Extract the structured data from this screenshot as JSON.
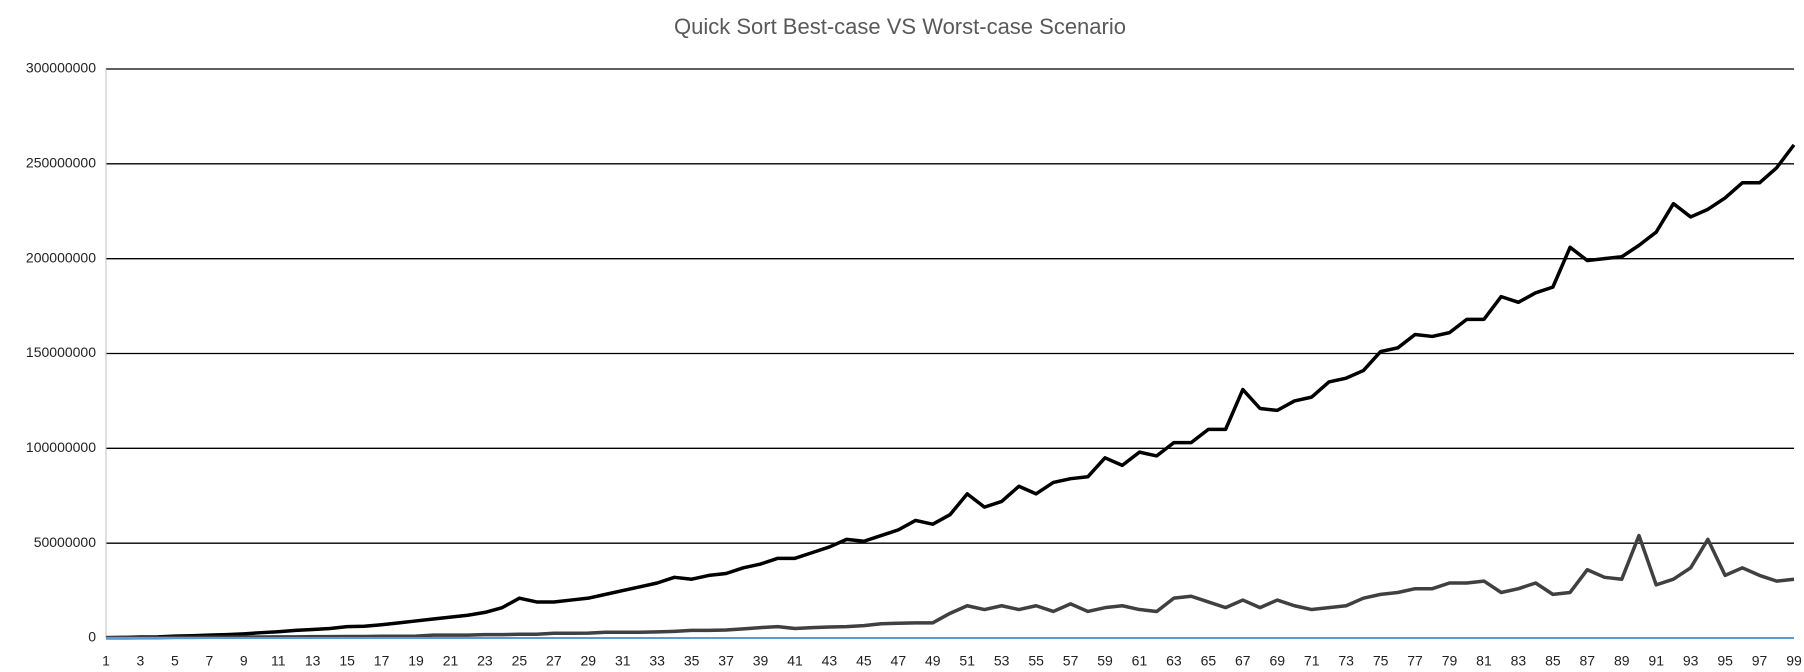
{
  "chart_data": {
    "type": "line",
    "title": "Quick Sort Best-case VS Worst-case Scenario",
    "categories": [
      1,
      null,
      3,
      null,
      5,
      null,
      7,
      null,
      9,
      null,
      11,
      null,
      13,
      null,
      15,
      null,
      17,
      null,
      19,
      null,
      21,
      null,
      23,
      null,
      25,
      null,
      27,
      null,
      29,
      null,
      31,
      null,
      33,
      null,
      35,
      null,
      37,
      null,
      39,
      null,
      41,
      null,
      43,
      null,
      45,
      null,
      47,
      null,
      49,
      null,
      51,
      null,
      53,
      null,
      55,
      null,
      57,
      null,
      59,
      null,
      61,
      null,
      63,
      null,
      65,
      null,
      67,
      null,
      69,
      null,
      71,
      null,
      73,
      null,
      75,
      null,
      77,
      null,
      79,
      null,
      81,
      null,
      83,
      null,
      85,
      null,
      87,
      null,
      89,
      null,
      91,
      null,
      93,
      null,
      95,
      null,
      97,
      null,
      99
    ],
    "series": [
      {
        "color": "#000000",
        "values": [
          200000,
          300000,
          500000,
          600000,
          1000000,
          1200000,
          1500000,
          1800000,
          2200000,
          2800000,
          3300000,
          4000000,
          4500000,
          5000000,
          6000000,
          6200000,
          7000000,
          8000000,
          9000000,
          10000000,
          11000000,
          12000000,
          13500000,
          16000000,
          21000000,
          19000000,
          19000000,
          20000000,
          21000000,
          23000000,
          25000000,
          27000000,
          29000000,
          32000000,
          31000000,
          33000000,
          34000000,
          37000000,
          39000000,
          42000000,
          42000000,
          45000000,
          48000000,
          52000000,
          51000000,
          54000000,
          57000000,
          62000000,
          60000000,
          65000000,
          76000000,
          69000000,
          72000000,
          80000000,
          76000000,
          82000000,
          84000000,
          85000000,
          95000000,
          91000000,
          98000000,
          96000000,
          103000000,
          103000000,
          110000000,
          110000000,
          131000000,
          121000000,
          120000000,
          125000000,
          127000000,
          135000000,
          137000000,
          141000000,
          151000000,
          153000000,
          160000000,
          159000000,
          161000000,
          168000000,
          168000000,
          180000000,
          177000000,
          182000000,
          185000000,
          206000000,
          199000000,
          200000000,
          201000000,
          207000000,
          214000000,
          229000000,
          222000000,
          226000000,
          232000000,
          240000000,
          240000000,
          248000000,
          260000000
        ]
      },
      {
        "color": "#404040",
        "values": [
          100000,
          100000,
          200000,
          200000,
          300000,
          300000,
          400000,
          400000,
          500000,
          500000,
          600000,
          600000,
          700000,
          700000,
          800000,
          800000,
          900000,
          900000,
          1000000,
          1500000,
          1500000,
          1500000,
          1800000,
          1800000,
          2000000,
          2000000,
          2500000,
          2500000,
          2600000,
          3000000,
          3000000,
          3000000,
          3200000,
          3500000,
          4000000,
          4000000,
          4200000,
          4800000,
          5500000,
          6000000,
          5000000,
          5500000,
          5800000,
          6000000,
          6500000,
          7500000,
          7800000,
          8000000,
          8000000,
          13000000,
          17000000,
          15000000,
          17000000,
          15000000,
          17000000,
          14000000,
          18000000,
          14000000,
          16000000,
          17000000,
          15000000,
          14000000,
          21000000,
          22000000,
          19000000,
          16000000,
          20000000,
          16000000,
          20000000,
          17000000,
          15000000,
          16000000,
          17000000,
          21000000,
          23000000,
          24000000,
          26000000,
          26000000,
          29000000,
          29000000,
          30000000,
          24000000,
          26000000,
          29000000,
          23000000,
          24000000,
          36000000,
          32000000,
          31000000,
          54000000,
          28000000,
          31000000,
          37000000,
          52000000,
          33000000,
          37000000,
          33000000,
          30000000,
          31000000
        ]
      },
      {
        "color": "#5b9bd5",
        "values": [
          0,
          0,
          0,
          0,
          0,
          0,
          0,
          0,
          0,
          0,
          0,
          0,
          0,
          0,
          0,
          0,
          0,
          0,
          0,
          0,
          0,
          0,
          0,
          0,
          0,
          0,
          0,
          0,
          0,
          0,
          0,
          0,
          0,
          0,
          0,
          0,
          0,
          0,
          0,
          0,
          0,
          0,
          0,
          0,
          0,
          0,
          0,
          0,
          0,
          0,
          0,
          0,
          0,
          0,
          0,
          0,
          0,
          0,
          0,
          0,
          0,
          0,
          0,
          0,
          0,
          0,
          0,
          0,
          0,
          0,
          0,
          0,
          0,
          0,
          0,
          0,
          0,
          0,
          0,
          0,
          0,
          0,
          0,
          0,
          0,
          0,
          0,
          0,
          0,
          0,
          0,
          0,
          0,
          0,
          0,
          0,
          0,
          0,
          0
        ]
      }
    ],
    "ylim": [
      0,
      300000000
    ],
    "yticks": [
      0,
      50000000,
      100000000,
      150000000,
      200000000,
      250000000,
      300000000
    ],
    "grid": true
  }
}
